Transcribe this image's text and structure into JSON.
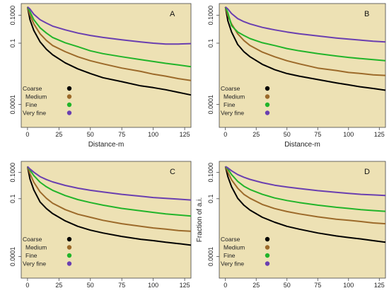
{
  "chart_data": [
    {
      "type": "line",
      "panel_label": "A",
      "xlabel": "Distance-m",
      "ylabel": "",
      "xlim": [
        -5,
        130
      ],
      "x_ticks": [
        "0",
        "25",
        "50",
        "75",
        "100",
        "125"
      ],
      "y_scale": "log",
      "ylim": [
        1e-05,
        0.4
      ],
      "y_ticks": [
        "0.1000",
        "0.1",
        "0.0001"
      ],
      "legend_position": "lower-left",
      "grid": false,
      "series": [
        {
          "name": "Coarse",
          "color": "#000000",
          "x": [
            0,
            2,
            5,
            10,
            15,
            20,
            30,
            40,
            50,
            60,
            75,
            90,
            100,
            110,
            120,
            130
          ],
          "y": [
            0.3,
            0.1,
            0.04,
            0.015,
            0.008,
            0.005,
            0.0025,
            0.0015,
            0.001,
            0.0007,
            0.0005,
            0.00035,
            0.0003,
            0.00025,
            0.0002,
            0.00016
          ]
        },
        {
          "name": "Medium",
          "color": "#9c6a2a",
          "x": [
            0,
            2,
            5,
            10,
            15,
            20,
            30,
            40,
            50,
            60,
            75,
            90,
            100,
            110,
            120,
            130
          ],
          "y": [
            0.3,
            0.15,
            0.07,
            0.03,
            0.017,
            0.011,
            0.0065,
            0.0042,
            0.003,
            0.0023,
            0.0016,
            0.0012,
            0.00095,
            0.0008,
            0.00065,
            0.00055
          ]
        },
        {
          "name": "Fine",
          "color": "#22b42a",
          "x": [
            0,
            2,
            5,
            10,
            15,
            20,
            30,
            40,
            50,
            60,
            75,
            90,
            100,
            110,
            120,
            130
          ],
          "y": [
            0.3,
            0.2,
            0.1,
            0.05,
            0.032,
            0.022,
            0.014,
            0.01,
            0.007,
            0.0055,
            0.0042,
            0.0033,
            0.0028,
            0.0024,
            0.0021,
            0.0018
          ]
        },
        {
          "name": "Very fine",
          "color": "#6a3fb0",
          "x": [
            0,
            2,
            5,
            10,
            15,
            20,
            30,
            40,
            50,
            60,
            75,
            90,
            100,
            110,
            120,
            130
          ],
          "y": [
            0.3,
            0.25,
            0.16,
            0.1,
            0.075,
            0.058,
            0.042,
            0.032,
            0.026,
            0.022,
            0.018,
            0.015,
            0.0135,
            0.0125,
            0.0125,
            0.013
          ]
        }
      ]
    },
    {
      "type": "line",
      "panel_label": "B",
      "xlabel": "Distance-m",
      "ylabel": "",
      "xlim": [
        -5,
        130
      ],
      "x_ticks": [
        "0",
        "25",
        "50",
        "75",
        "100",
        "125"
      ],
      "y_scale": "log",
      "ylim": [
        1e-05,
        0.4
      ],
      "y_ticks": [
        "0.1000",
        "0.1",
        "0.0001"
      ],
      "legend_position": "lower-left",
      "grid": false,
      "series": [
        {
          "name": "Coarse",
          "color": "#000000",
          "x": [
            0,
            2,
            5,
            10,
            15,
            20,
            30,
            40,
            50,
            60,
            75,
            90,
            100,
            110,
            120,
            130
          ],
          "y": [
            0.3,
            0.09,
            0.035,
            0.012,
            0.0065,
            0.0042,
            0.0022,
            0.0014,
            0.001,
            0.0008,
            0.0006,
            0.00045,
            0.00038,
            0.00032,
            0.00028,
            0.00024
          ]
        },
        {
          "name": "Medium",
          "color": "#9c6a2a",
          "x": [
            0,
            2,
            5,
            10,
            15,
            20,
            30,
            40,
            50,
            60,
            75,
            90,
            100,
            110,
            120,
            130
          ],
          "y": [
            0.3,
            0.14,
            0.07,
            0.03,
            0.017,
            0.011,
            0.0063,
            0.0042,
            0.003,
            0.0023,
            0.0016,
            0.0013,
            0.0011,
            0.001,
            0.0009,
            0.00085
          ]
        },
        {
          "name": "Fine",
          "color": "#22b42a",
          "x": [
            0,
            2,
            5,
            10,
            15,
            20,
            30,
            40,
            50,
            60,
            75,
            90,
            100,
            110,
            120,
            130
          ],
          "y": [
            0.3,
            0.18,
            0.06,
            0.035,
            0.026,
            0.02,
            0.014,
            0.011,
            0.0085,
            0.007,
            0.0055,
            0.0045,
            0.004,
            0.0036,
            0.0033,
            0.003
          ]
        },
        {
          "name": "Very fine",
          "color": "#6a3fb0",
          "x": [
            0,
            2,
            5,
            10,
            15,
            20,
            30,
            40,
            50,
            60,
            75,
            90,
            100,
            110,
            120,
            130
          ],
          "y": [
            0.3,
            0.25,
            0.17,
            0.11,
            0.085,
            0.07,
            0.052,
            0.042,
            0.035,
            0.03,
            0.025,
            0.021,
            0.019,
            0.0175,
            0.016,
            0.015
          ]
        }
      ]
    },
    {
      "type": "line",
      "panel_label": "C",
      "xlabel": "",
      "ylabel": "",
      "xlim": [
        -5,
        130
      ],
      "x_ticks": [
        "0",
        "25",
        "50",
        "75",
        "100",
        "125"
      ],
      "y_scale": "log",
      "ylim": [
        1e-05,
        0.4
      ],
      "y_ticks": [
        "0.1000",
        "0.1",
        "0.0001"
      ],
      "legend_position": "lower-left",
      "grid": false,
      "series": [
        {
          "name": "Coarse",
          "color": "#000000",
          "x": [
            0,
            2,
            5,
            10,
            15,
            20,
            30,
            40,
            50,
            60,
            75,
            90,
            100,
            110,
            120,
            130
          ],
          "y": [
            0.25,
            0.08,
            0.03,
            0.01,
            0.0055,
            0.0035,
            0.0018,
            0.0011,
            0.00078,
            0.0006,
            0.00044,
            0.00034,
            0.0003,
            0.00026,
            0.00023,
            0.0002
          ]
        },
        {
          "name": "Medium",
          "color": "#9c6a2a",
          "x": [
            0,
            2,
            5,
            10,
            15,
            20,
            30,
            40,
            50,
            60,
            75,
            90,
            100,
            110,
            120,
            130
          ],
          "y": [
            0.25,
            0.13,
            0.06,
            0.025,
            0.014,
            0.009,
            0.005,
            0.0033,
            0.0025,
            0.0019,
            0.0014,
            0.0011,
            0.00095,
            0.00085,
            0.00075,
            0.0007
          ]
        },
        {
          "name": "Fine",
          "color": "#22b42a",
          "x": [
            0,
            2,
            5,
            10,
            15,
            20,
            30,
            40,
            50,
            60,
            75,
            90,
            100,
            110,
            120,
            130
          ],
          "y": [
            0.25,
            0.18,
            0.11,
            0.06,
            0.04,
            0.029,
            0.018,
            0.0125,
            0.0095,
            0.0075,
            0.0056,
            0.0045,
            0.0039,
            0.0034,
            0.0031,
            0.0028
          ]
        },
        {
          "name": "Very fine",
          "color": "#6a3fb0",
          "x": [
            0,
            2,
            5,
            10,
            15,
            20,
            30,
            40,
            50,
            60,
            75,
            90,
            100,
            110,
            120,
            130
          ],
          "y": [
            0.25,
            0.2,
            0.15,
            0.1,
            0.077,
            0.062,
            0.045,
            0.035,
            0.029,
            0.025,
            0.02,
            0.017,
            0.015,
            0.014,
            0.013,
            0.012
          ]
        }
      ]
    },
    {
      "type": "line",
      "panel_label": "D",
      "xlabel": "",
      "ylabel": "Fraction of a.i.",
      "xlim": [
        -5,
        130
      ],
      "x_ticks": [
        "0",
        "25",
        "50",
        "75",
        "100",
        "125"
      ],
      "y_scale": "log",
      "ylim": [
        1e-05,
        0.4
      ],
      "y_ticks": [
        "0.1000",
        "0.1",
        "0.0001"
      ],
      "legend_position": "lower-left",
      "grid": false,
      "series": [
        {
          "name": "Coarse",
          "color": "#000000",
          "x": [
            0,
            2,
            5,
            10,
            15,
            20,
            30,
            40,
            50,
            60,
            75,
            90,
            100,
            110,
            120,
            130
          ],
          "y": [
            0.25,
            0.1,
            0.04,
            0.014,
            0.0075,
            0.0048,
            0.0025,
            0.0016,
            0.0011,
            0.00085,
            0.0006,
            0.00046,
            0.0004,
            0.00035,
            0.0003,
            0.00026
          ]
        },
        {
          "name": "Medium",
          "color": "#9c6a2a",
          "x": [
            0,
            2,
            5,
            10,
            15,
            20,
            30,
            40,
            50,
            60,
            75,
            90,
            100,
            110,
            120,
            130
          ],
          "y": [
            0.25,
            0.15,
            0.075,
            0.035,
            0.02,
            0.014,
            0.008,
            0.0055,
            0.0042,
            0.0034,
            0.0026,
            0.0021,
            0.0019,
            0.0017,
            0.0015,
            0.0014
          ]
        },
        {
          "name": "Fine",
          "color": "#22b42a",
          "x": [
            0,
            2,
            5,
            10,
            15,
            20,
            30,
            40,
            50,
            60,
            75,
            90,
            100,
            110,
            120,
            130
          ],
          "y": [
            0.25,
            0.2,
            0.12,
            0.065,
            0.042,
            0.031,
            0.02,
            0.0145,
            0.0115,
            0.0095,
            0.0075,
            0.0062,
            0.0056,
            0.005,
            0.0046,
            0.0043
          ]
        },
        {
          "name": "Very fine",
          "color": "#6a3fb0",
          "x": [
            0,
            2,
            5,
            10,
            15,
            20,
            30,
            40,
            50,
            60,
            75,
            90,
            100,
            110,
            120,
            130
          ],
          "y": [
            0.25,
            0.22,
            0.17,
            0.12,
            0.095,
            0.078,
            0.058,
            0.046,
            0.039,
            0.034,
            0.028,
            0.024,
            0.022,
            0.02,
            0.019,
            0.018
          ]
        }
      ]
    }
  ]
}
